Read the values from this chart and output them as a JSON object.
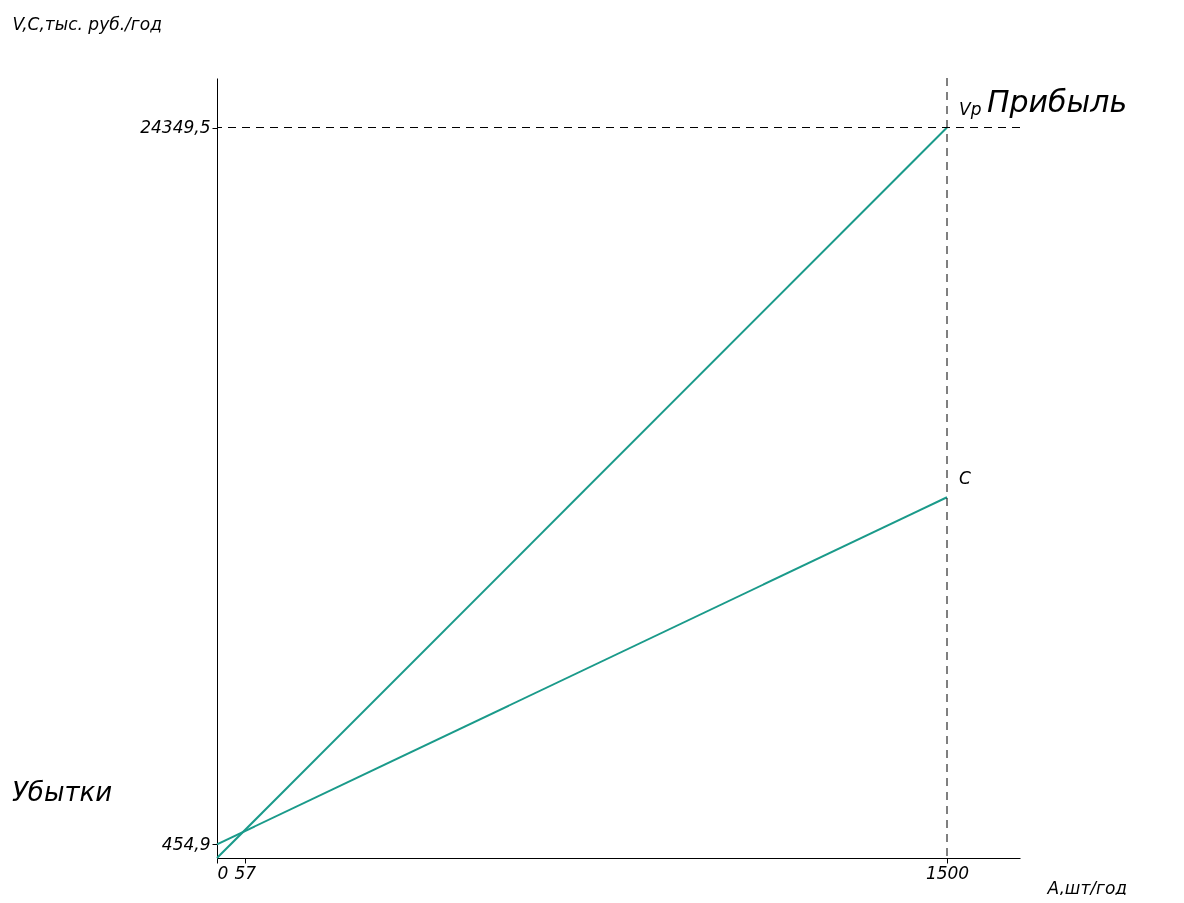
{
  "chart_data": {
    "type": "line",
    "xlabel": "A,шт/год",
    "ylabel": "V,C,тыс. руб./год",
    "x": [
      0,
      1500
    ],
    "series": [
      {
        "name": "Vp",
        "color": "#1a9a8a",
        "values": [
          0,
          24349.5
        ]
      },
      {
        "name": "C",
        "color": "#1a9a8a",
        "values": [
          454.9,
          12025
        ]
      }
    ],
    "xlim": [
      0,
      1650
    ],
    "ylim": [
      0,
      26000
    ],
    "xticks": [
      0,
      57,
      1500
    ],
    "yticks": [
      {
        "value": 454.9,
        "label": "454,9"
      },
      {
        "value": 24349.5,
        "label": "24349,5"
      }
    ],
    "ref_lines": [
      {
        "axis": "x",
        "value": 1500,
        "line_style": "dashed",
        "color": "#000000"
      },
      {
        "axis": "y",
        "value": 24349.5,
        "line_style": "dashed",
        "color": "#000000"
      }
    ],
    "annotations": [
      "Прибыль",
      "Убытки"
    ],
    "grid": false,
    "marker": "none",
    "line_style": "solid"
  }
}
